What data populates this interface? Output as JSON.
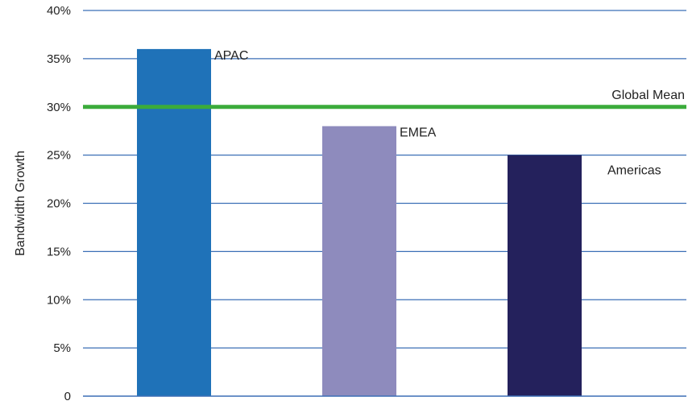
{
  "chart_data": {
    "type": "bar",
    "title": "",
    "xlabel": "",
    "ylabel": "Bandwidth Growth",
    "ylim": [
      0,
      40
    ],
    "yticks": [
      {
        "value": 0,
        "label": "0"
      },
      {
        "value": 5,
        "label": "5%"
      },
      {
        "value": 10,
        "label": "10%"
      },
      {
        "value": 15,
        "label": "15%"
      },
      {
        "value": 20,
        "label": "20%"
      },
      {
        "value": 25,
        "label": "25%"
      },
      {
        "value": 30,
        "label": "30%"
      },
      {
        "value": 35,
        "label": "35%"
      },
      {
        "value": 40,
        "label": "40%"
      }
    ],
    "grid": true,
    "grid_color": "#3b6fb6",
    "bars": [
      {
        "label": "APAC",
        "value": 36,
        "color": "#1f72b8"
      },
      {
        "label": "EMEA",
        "value": 28,
        "color": "#8e8bbd"
      },
      {
        "label": "Americas",
        "value": 25,
        "color": "#24215c"
      }
    ],
    "reference_line": {
      "label": "Global Mean",
      "value": 30,
      "color": "#3bab3b"
    }
  }
}
